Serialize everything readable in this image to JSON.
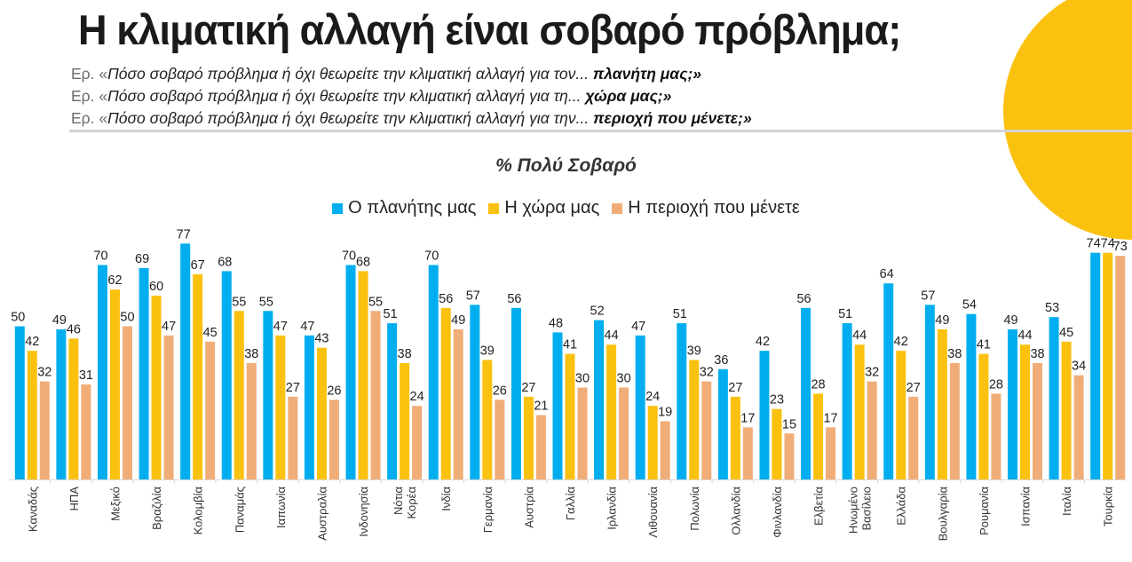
{
  "header": {
    "title": "Η κλιματική αλλαγή είναι σοβαρό πρόβλημα;",
    "questions": [
      {
        "prefix": "Ερ. «",
        "text": "Πόσο σοβαρό πρόβλημα ή όχι θεωρείτε την κλιματική αλλαγή για τον... ",
        "emphasis": "πλανήτη μας;»"
      },
      {
        "prefix": "Ερ. «",
        "text": "Πόσο σοβαρό πρόβλημα ή όχι θεωρείτε την κλιματική αλλαγή για τη... ",
        "emphasis": "χώρα μας;»"
      },
      {
        "prefix": "Ερ. «",
        "text": "Πόσο σοβαρό πρόβλημα ή όχι θεωρείτε την κλιματική αλλαγή για την... ",
        "emphasis": "περιοχή που μένετε;»"
      }
    ]
  },
  "colors": {
    "planet": "#00AEEF",
    "country": "#FBC10F",
    "area": "#F0AD78",
    "accent_circle": "#FBC10F"
  },
  "chart_data": {
    "type": "bar",
    "title": "% Πολύ Σοβαρό",
    "xlabel": "",
    "ylabel": "",
    "ylim": [
      0,
      80
    ],
    "grid": false,
    "legend_position": "top-center",
    "categories": [
      "Καναδάς",
      "ΗΠΑ",
      "Μεξικό",
      "Βραζιλία",
      "Κολομβία",
      "Παναμάς",
      "Ιαπωνία",
      "Αυστραλία",
      "Ινδονησία",
      "Νότια Κορέα",
      "Ινδία",
      "Γερμανία",
      "Αυστρία",
      "Γαλλία",
      "Ιρλανδία",
      "Λιθουανία",
      "Πολωνία",
      "Ολλανδία",
      "Φινλανδία",
      "Ελβετία",
      "Ηνωμένο Βασίλειο",
      "Ελλάδα",
      "Βουλγαρία",
      "Ρουμανία",
      "Ισπανία",
      "Ιταλία",
      "Τουρκία"
    ],
    "category_lines": [
      [
        "Καναδάς"
      ],
      [
        "ΗΠΑ"
      ],
      [
        "Μεξικό"
      ],
      [
        "Βραζιλία"
      ],
      [
        "Κολομβία"
      ],
      [
        "Παναμάς"
      ],
      [
        "Ιαπωνία"
      ],
      [
        "Αυστραλία"
      ],
      [
        "Ινδονησία"
      ],
      [
        "Νότια",
        "Κορέα"
      ],
      [
        "Ινδία"
      ],
      [
        "Γερμανία"
      ],
      [
        "Αυστρία"
      ],
      [
        "Γαλλία"
      ],
      [
        "Ιρλανδία"
      ],
      [
        "Λιθουανία"
      ],
      [
        "Πολωνία"
      ],
      [
        "Ολλανδία"
      ],
      [
        "Φινλανδία"
      ],
      [
        "Ελβετία"
      ],
      [
        "Ηνωμένο",
        "Βασίλειο"
      ],
      [
        "Ελλάδα"
      ],
      [
        "Βουλγαρία"
      ],
      [
        "Ρουμανία"
      ],
      [
        "Ισπανία"
      ],
      [
        "Ιταλία"
      ],
      [
        "Τουρκία"
      ]
    ],
    "series": [
      {
        "name": "Ο πλανήτης μας",
        "key": "planet",
        "values": [
          50,
          49,
          70,
          69,
          77,
          68,
          55,
          47,
          70,
          51,
          70,
          57,
          56,
          48,
          52,
          47,
          51,
          36,
          42,
          56,
          51,
          64,
          57,
          54,
          49,
          53,
          74
        ]
      },
      {
        "name": "Η χώρα μας",
        "key": "country",
        "values": [
          42,
          46,
          62,
          60,
          67,
          55,
          47,
          43,
          68,
          38,
          56,
          39,
          27,
          41,
          44,
          24,
          39,
          27,
          23,
          28,
          44,
          42,
          49,
          41,
          44,
          45,
          74
        ]
      },
      {
        "name": "Η περιοχή που μένετε",
        "key": "area",
        "values": [
          32,
          31,
          50,
          47,
          45,
          38,
          27,
          26,
          55,
          24,
          49,
          26,
          21,
          30,
          30,
          19,
          32,
          17,
          15,
          17,
          32,
          27,
          38,
          28,
          38,
          34,
          73
        ]
      }
    ]
  }
}
